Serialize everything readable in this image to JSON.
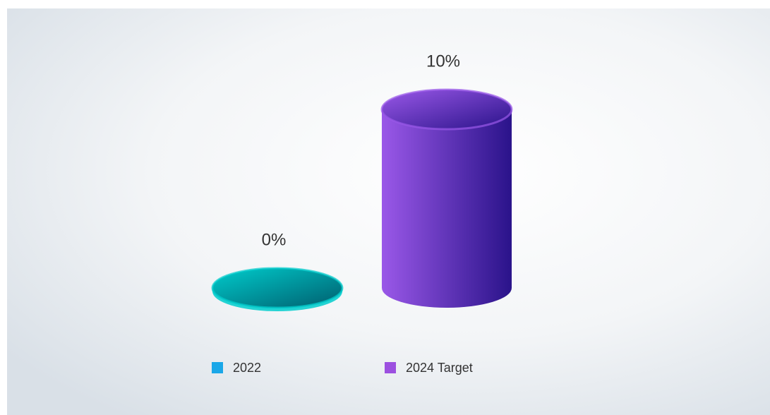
{
  "chart_data": {
    "type": "cylinder",
    "series": [
      {
        "name": "2022",
        "color": "#1aa7e8",
        "fill": [
          "#00cccc",
          "#005e6e"
        ],
        "values": [
          0
        ],
        "value_labels": [
          "0%"
        ]
      },
      {
        "name": "2024 Target",
        "color": "#9c50e0",
        "fill": [
          "#9a58e8",
          "#2a138a"
        ],
        "values": [
          10
        ],
        "value_labels": [
          "10%"
        ]
      }
    ],
    "legend": "bottom"
  }
}
